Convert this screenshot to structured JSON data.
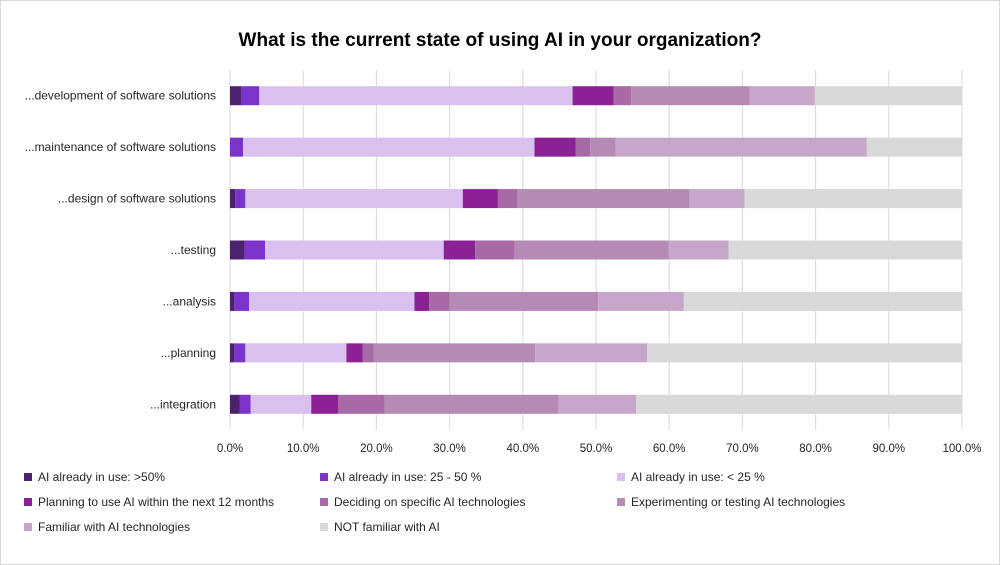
{
  "chart_data": {
    "type": "bar",
    "orientation": "horizontal",
    "stacked": true,
    "title": "What is the current state of using AI in your organization?",
    "xlabel": "",
    "ylabel": "",
    "xlim": [
      0,
      100
    ],
    "x_ticks": [
      "0.0%",
      "10.0%",
      "20.0%",
      "30.0%",
      "40.0%",
      "50.0%",
      "60.0%",
      "70.0%",
      "80.0%",
      "90.0%",
      "100.0%"
    ],
    "grid": true,
    "legend_position": "bottom",
    "categories": [
      "...development of software solutions",
      "...maintenance of software solutions",
      "...design of software solutions",
      "...testing",
      "...analysis",
      "...planning",
      "...integration"
    ],
    "series": [
      {
        "name": "AI already in use: >50%",
        "color": "#4b2170",
        "values": [
          1.5,
          0.0,
          0.7,
          2.0,
          0.6,
          0.6,
          1.3
        ]
      },
      {
        "name": "AI already in use: 25 - 50 %",
        "color": "#7c33c9",
        "values": [
          2.5,
          1.8,
          1.4,
          2.8,
          2.0,
          1.5,
          1.5
        ]
      },
      {
        "name": "AI already in use: < 25 %",
        "color": "#d9c0ef",
        "values": [
          42.8,
          39.8,
          29.7,
          24.4,
          22.6,
          13.8,
          8.3
        ]
      },
      {
        "name": "Planning to use AI within the next 12 months",
        "color": "#8c2095",
        "values": [
          5.6,
          5.6,
          4.8,
          4.3,
          2.0,
          2.2,
          3.7
        ]
      },
      {
        "name": "Deciding on specific AI technologies",
        "color": "#a86aa6",
        "values": [
          2.4,
          2.0,
          2.7,
          5.4,
          2.8,
          1.5,
          6.3
        ]
      },
      {
        "name": "Experimenting or testing AI technologies",
        "color": "#b58ab5",
        "values": [
          16.2,
          3.5,
          23.5,
          21.0,
          20.3,
          22.1,
          23.8
        ]
      },
      {
        "name": "Familiar with AI technologies",
        "color": "#c7a7c9",
        "values": [
          8.9,
          34.3,
          7.5,
          8.2,
          11.7,
          15.3,
          10.6
        ]
      },
      {
        "name": "NOT familiar with AI",
        "color": "#d9d9d9",
        "values": [
          20.1,
          13.0,
          29.7,
          31.9,
          38.0,
          43.0,
          44.5
        ]
      }
    ]
  }
}
